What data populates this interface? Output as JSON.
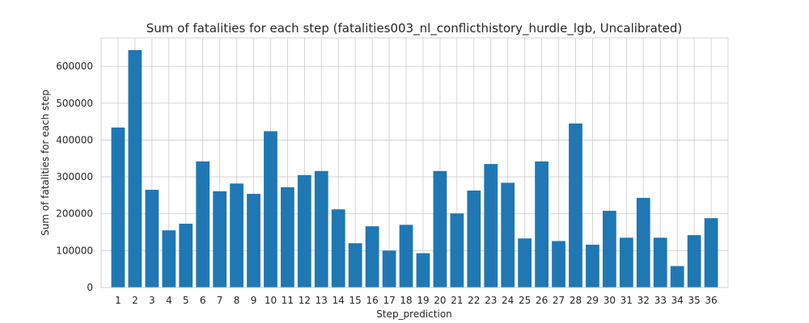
{
  "chart_data": {
    "type": "bar",
    "title": "Sum of fatalities for each step (fatalities003_nl_conflicthistory_hurdle_lgb, Uncalibrated)",
    "xlabel": "Step_prediction",
    "ylabel": "Sum of fatalities for each step",
    "categories": [
      "1",
      "2",
      "3",
      "4",
      "5",
      "6",
      "7",
      "8",
      "9",
      "10",
      "11",
      "12",
      "13",
      "14",
      "15",
      "16",
      "17",
      "18",
      "19",
      "20",
      "21",
      "22",
      "23",
      "24",
      "25",
      "26",
      "27",
      "28",
      "29",
      "30",
      "31",
      "32",
      "33",
      "34",
      "35",
      "36"
    ],
    "values": [
      434000,
      644000,
      265000,
      155000,
      173000,
      342000,
      261000,
      282000,
      254000,
      424000,
      272000,
      305000,
      316000,
      212000,
      120000,
      166000,
      100000,
      170000,
      93000,
      316000,
      201000,
      263000,
      335000,
      284000,
      133000,
      342000,
      126000,
      445000,
      116000,
      208000,
      135000,
      243000,
      135000,
      58000,
      142000,
      188000
    ],
    "yticks": [
      0,
      100000,
      200000,
      300000,
      400000,
      500000,
      600000
    ],
    "ytick_labels": [
      "0",
      "100000",
      "200000",
      "300000",
      "400000",
      "500000",
      "600000"
    ],
    "ylim": [
      0,
      677000
    ],
    "grid": true,
    "bar_color": "#1f77b4",
    "grid_color": "#cccccc"
  }
}
